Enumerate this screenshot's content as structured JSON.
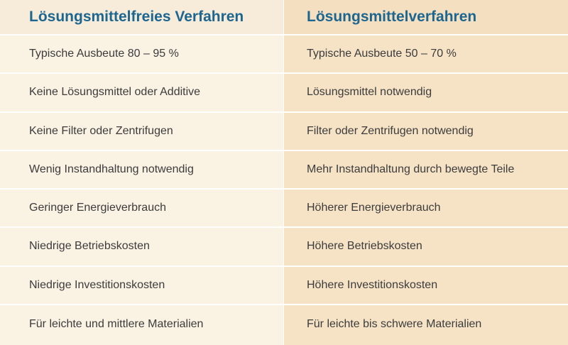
{
  "columns": [
    {
      "header": "Lösungsmittelfreies Verfahren",
      "rows": [
        "Typische Ausbeute 80 – 95 %",
        "Keine Lösungsmittel oder Additive",
        "Keine Filter oder Zentrifugen",
        "Wenig Instandhaltung notwendig",
        "Geringer Energieverbrauch",
        "Niedrige Betriebskosten",
        "Niedrige Investitionskosten",
        "Für leichte und mittlere Materialien"
      ]
    },
    {
      "header": "Lösungsmittelverfahren",
      "rows": [
        "Typische Ausbeute 50 – 70 %",
        "Lösungsmittel notwendig",
        "Filter oder Zentrifugen notwendig",
        "Mehr Instandhaltung durch bewegte Teile",
        "Höherer Energieverbrauch",
        "Höhere Betriebskosten",
        "Höhere Investitionskosten",
        "Für leichte bis schwere Materialien"
      ]
    }
  ],
  "colors": {
    "header_text": "#1d6690",
    "body_text": "#3c3c3c",
    "left_bg": "#faf2e3",
    "right_bg": "#f6e3c6"
  }
}
